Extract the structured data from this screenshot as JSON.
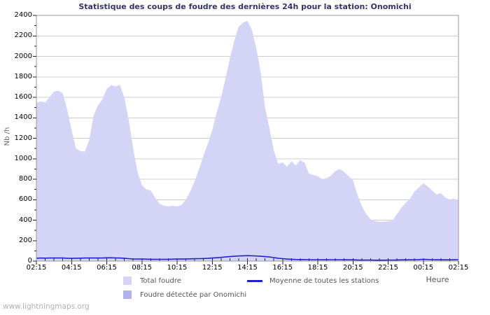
{
  "page": {
    "watermark": "www.lightningmaps.org"
  },
  "style": {
    "title_color": "#333366",
    "background": "#ffffff",
    "grid_color": "#cccccc",
    "axis_box_color": "#999999",
    "tick_color": "#222222",
    "tick_label_color": "#000000",
    "ylabel_color": "#666666",
    "xlabel_color": "#555555",
    "legend_text_color": "#555555",
    "watermark_color": "#b0b0b0"
  },
  "chart_data": {
    "type": "area",
    "title": "Statistique des coups de foudre des dernières 24h pour la station: Onomichi",
    "xlabel": "Heure",
    "ylabel": "Nb /h",
    "ylim": [
      0,
      2400
    ],
    "y_major_step": 200,
    "y_minor_step": 100,
    "grid": true,
    "legend_position": "bottom",
    "x_tick_labels": [
      "02:15",
      "04:15",
      "06:15",
      "08:15",
      "10:15",
      "12:15",
      "14:15",
      "16:15",
      "18:15",
      "20:15",
      "22:15",
      "00:15",
      "02:15"
    ],
    "x_minor_step_minutes": 30,
    "x": [
      "02:15",
      "02:30",
      "02:45",
      "03:00",
      "03:15",
      "03:30",
      "03:45",
      "04:00",
      "04:15",
      "04:30",
      "04:45",
      "05:00",
      "05:15",
      "05:30",
      "05:45",
      "06:00",
      "06:15",
      "06:30",
      "06:45",
      "07:00",
      "07:15",
      "07:30",
      "07:45",
      "08:00",
      "08:15",
      "08:30",
      "08:45",
      "09:00",
      "09:15",
      "09:30",
      "09:45",
      "10:00",
      "10:15",
      "10:30",
      "10:45",
      "11:00",
      "11:15",
      "11:30",
      "11:45",
      "12:00",
      "12:15",
      "12:30",
      "12:45",
      "13:00",
      "13:15",
      "13:30",
      "13:45",
      "14:00",
      "14:15",
      "14:30",
      "14:45",
      "15:00",
      "15:15",
      "15:30",
      "15:45",
      "16:00",
      "16:15",
      "16:30",
      "16:45",
      "17:00",
      "17:15",
      "17:30",
      "17:45",
      "18:00",
      "18:15",
      "18:30",
      "18:45",
      "19:00",
      "19:15",
      "19:30",
      "19:45",
      "20:00",
      "20:15",
      "20:30",
      "20:45",
      "21:00",
      "21:15",
      "21:30",
      "21:45",
      "22:00",
      "22:15",
      "22:30",
      "22:45",
      "23:00",
      "23:15",
      "23:30",
      "23:45",
      "00:00",
      "00:15",
      "00:30",
      "00:45",
      "01:00",
      "01:15",
      "01:30",
      "01:45",
      "02:00",
      "02:15"
    ],
    "series": [
      {
        "name": "Total foudre",
        "kind": "area",
        "color": "#d4d4f6",
        "values": [
          1545,
          1560,
          1550,
          1600,
          1655,
          1665,
          1640,
          1480,
          1280,
          1100,
          1075,
          1070,
          1180,
          1420,
          1520,
          1580,
          1680,
          1720,
          1705,
          1720,
          1600,
          1380,
          1100,
          870,
          740,
          700,
          690,
          620,
          560,
          540,
          535,
          540,
          535,
          550,
          600,
          680,
          780,
          900,
          1030,
          1150,
          1280,
          1450,
          1600,
          1780,
          1980,
          2150,
          2290,
          2330,
          2345,
          2260,
          2080,
          1850,
          1500,
          1300,
          1080,
          950,
          965,
          920,
          975,
          935,
          985,
          960,
          855,
          840,
          830,
          800,
          810,
          835,
          880,
          900,
          870,
          830,
          790,
          650,
          540,
          460,
          410,
          390,
          385,
          385,
          390,
          395,
          460,
          520,
          570,
          610,
          680,
          720,
          760,
          730,
          690,
          650,
          665,
          620,
          600,
          610,
          590
        ]
      },
      {
        "name": "Foudre détectée par Onomichi",
        "kind": "area",
        "color": "#b1b1ec",
        "values": [
          0,
          0,
          0,
          0,
          0,
          0,
          0,
          0,
          0,
          0,
          0,
          0,
          0,
          0,
          0,
          0,
          0,
          0,
          0,
          0,
          0,
          0,
          0,
          0,
          0,
          0,
          0,
          0,
          0,
          0,
          0,
          0,
          0,
          0,
          0,
          0,
          0,
          0,
          0,
          0,
          0,
          0,
          0,
          0,
          0,
          0,
          0,
          0,
          0,
          0,
          0,
          0,
          0,
          0,
          0,
          0,
          0,
          0,
          0,
          0,
          0,
          0,
          0,
          0,
          0,
          0,
          0,
          0,
          0,
          0,
          0,
          0,
          0,
          0,
          0,
          0,
          0,
          0,
          0,
          0,
          0,
          0,
          0,
          0,
          0,
          0,
          0,
          0,
          0,
          0,
          0,
          0,
          0,
          0,
          0,
          0,
          0
        ]
      },
      {
        "name": "Moyenne de toutes les stations",
        "kind": "line",
        "color": "#2222cc",
        "values": [
          28,
          30,
          29,
          30,
          31,
          30,
          30,
          28,
          27,
          28,
          29,
          30,
          30,
          31,
          30,
          30,
          32,
          33,
          31,
          30,
          28,
          24,
          21,
          20,
          20,
          19,
          18,
          18,
          17,
          18,
          18,
          19,
          20,
          20,
          21,
          22,
          23,
          24,
          25,
          27,
          30,
          33,
          36,
          40,
          44,
          47,
          50,
          52,
          53,
          52,
          50,
          47,
          44,
          40,
          34,
          28,
          24,
          20,
          18,
          16,
          15,
          15,
          14,
          14,
          14,
          13,
          13,
          14,
          14,
          14,
          13,
          13,
          12,
          11,
          10,
          10,
          10,
          9,
          9,
          9,
          10,
          10,
          11,
          12,
          12,
          13,
          14,
          15,
          18,
          16,
          14,
          13,
          13,
          12,
          12,
          13,
          14
        ]
      }
    ]
  }
}
